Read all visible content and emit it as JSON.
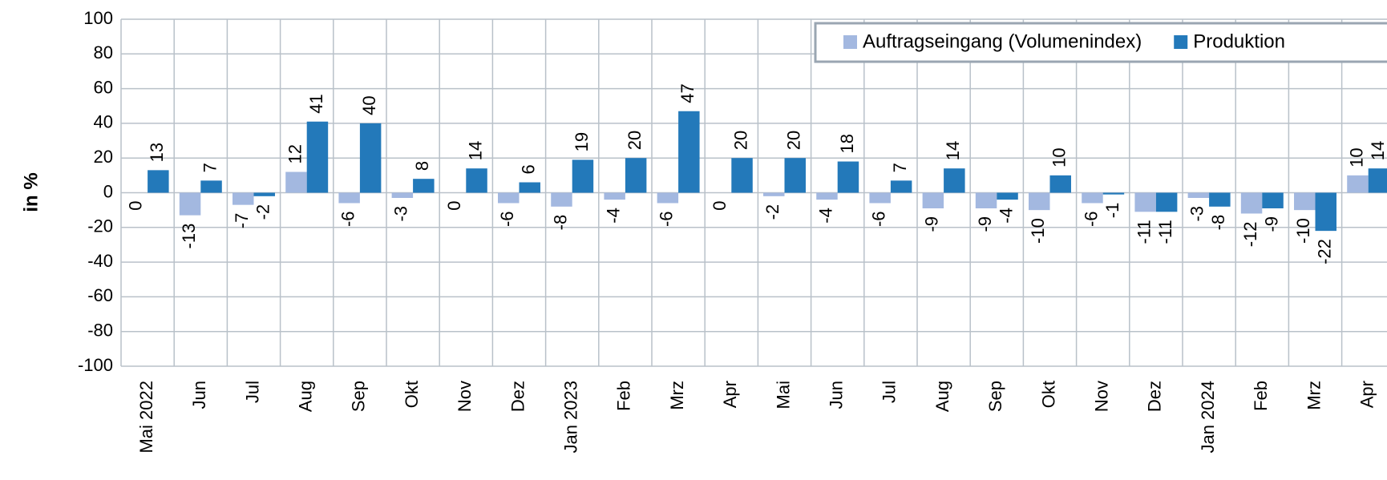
{
  "chart_data": {
    "type": "bar",
    "y_label": "in %",
    "categories": [
      "Mai 2022",
      "Jun",
      "Jul",
      "Aug",
      "Sep",
      "Okt",
      "Nov",
      "Dez",
      "Jan 2023",
      "Feb",
      "Mrz",
      "Apr",
      "Mai",
      "Jun",
      "Jul",
      "Aug",
      "Sep",
      "Okt",
      "Nov",
      "Dez",
      "Jan 2024",
      "Feb",
      "Mrz",
      "Apr"
    ],
    "series": [
      {
        "name": "Auftragseingang (Volumenindex)",
        "color": "#a3b8e0",
        "values": [
          0,
          -13,
          -7,
          12,
          -6,
          -3,
          0,
          -6,
          -8,
          -4,
          -6,
          0,
          -2,
          -4,
          -6,
          -9,
          -9,
          -10,
          -6,
          -11,
          -3,
          -12,
          -10,
          10
        ]
      },
      {
        "name": "Produktion",
        "color": "#2379ba",
        "values": [
          13,
          7,
          -2,
          41,
          40,
          8,
          14,
          6,
          19,
          20,
          47,
          20,
          20,
          18,
          7,
          14,
          -4,
          10,
          -1,
          -11,
          -8,
          -9,
          -22,
          14
        ]
      }
    ],
    "ylim": [
      -100,
      100
    ],
    "yticks": [
      -100,
      -80,
      -60,
      -40,
      -20,
      0,
      20,
      40,
      60,
      80,
      100
    ],
    "grid": true,
    "legend": "top-right"
  }
}
